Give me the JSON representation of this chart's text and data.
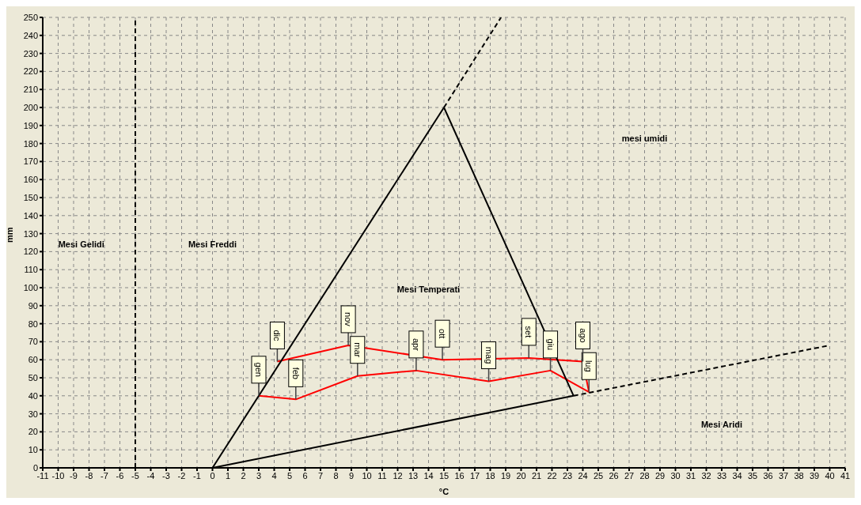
{
  "chart_data": {
    "type": "line",
    "xlabel": "°C",
    "ylabel": "mm",
    "xlim": [
      -11,
      41
    ],
    "xticks": [
      -11,
      -10,
      -9,
      -8,
      -7,
      -6,
      -5,
      -4,
      -3,
      -2,
      -1,
      0,
      1,
      2,
      3,
      4,
      5,
      6,
      7,
      8,
      9,
      10,
      11,
      12,
      13,
      14,
      15,
      16,
      17,
      18,
      19,
      20,
      21,
      22,
      23,
      24,
      25,
      26,
      27,
      28,
      29,
      30,
      31,
      32,
      33,
      34,
      35,
      36,
      37,
      38,
      39,
      40,
      41
    ],
    "ylim": [
      0,
      250
    ],
    "yticks": [
      0,
      10,
      20,
      30,
      40,
      50,
      60,
      70,
      80,
      90,
      100,
      110,
      120,
      130,
      140,
      150,
      160,
      170,
      180,
      190,
      200,
      210,
      220,
      230,
      240,
      250
    ],
    "grid": true,
    "marker": "none",
    "series": [
      {
        "color": "#ff0000",
        "line_style": "solid",
        "x": [
          3.0,
          5.4,
          9.4,
          13.2,
          17.9,
          21.9,
          24.4,
          24.0,
          20.5,
          14.9,
          8.8,
          4.2
        ],
        "values": [
          40,
          38,
          51,
          54,
          48,
          54,
          42,
          59,
          61,
          60,
          68,
          59
        ]
      },
      {
        "color": "#000000",
        "line_style": "solid",
        "x": [
          0,
          15
        ],
        "values": [
          0,
          200
        ]
      },
      {
        "color": "#000000",
        "line_style": "solid",
        "x": [
          15,
          23.4
        ],
        "values": [
          200,
          40
        ]
      },
      {
        "color": "#000000",
        "line_style": "solid",
        "x": [
          0,
          23.4
        ],
        "values": [
          0,
          40
        ]
      },
      {
        "color": "#000000",
        "line_style": "dashed",
        "x": [
          23.4,
          40
        ],
        "values": [
          40,
          68
        ]
      },
      {
        "color": "#000000",
        "line_style": "dashed",
        "x": [
          15,
          18.7
        ],
        "values": [
          200,
          250
        ]
      }
    ],
    "ref_lines": [
      {
        "axis": "x",
        "value": -5,
        "color": "#000000",
        "line_style": "dashed"
      }
    ],
    "annotations": [
      {
        "text": "gen",
        "x": 3.0,
        "y": 40
      },
      {
        "text": "feb",
        "x": 5.4,
        "y": 38
      },
      {
        "text": "mar",
        "x": 9.4,
        "y": 51
      },
      {
        "text": "apr",
        "x": 13.2,
        "y": 54
      },
      {
        "text": "mag",
        "x": 17.9,
        "y": 48
      },
      {
        "text": "giu",
        "x": 21.9,
        "y": 54
      },
      {
        "text": "lug",
        "x": 24.4,
        "y": 42
      },
      {
        "text": "ago",
        "x": 24.0,
        "y": 59
      },
      {
        "text": "set",
        "x": 20.5,
        "y": 61
      },
      {
        "text": "ott",
        "x": 14.9,
        "y": 60
      },
      {
        "text": "nov",
        "x": 8.8,
        "y": 68
      },
      {
        "text": "dic",
        "x": 4.2,
        "y": 59
      },
      "Mesi Gelidi",
      "Mesi Freddi",
      "Mesi Temperati",
      "mesi umidi",
      "Mesi Aridi"
    ]
  }
}
